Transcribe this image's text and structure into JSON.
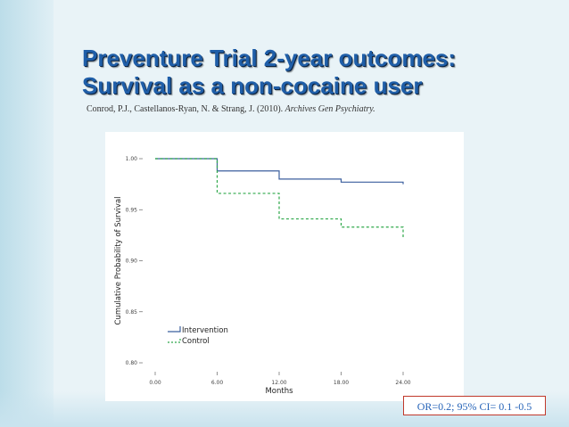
{
  "slide": {
    "title_line1": "Preventure Trial 2-year outcomes:",
    "title_line2": "Survival as a non-cocaine user",
    "citation_authors": "Conrod, P.J., Castellanos-Ryan, N. & Strang, J. (2010). ",
    "citation_journal": "Archives Gen Psychiatry.",
    "annotation": "OR=0.2; 95% CI= 0.1 -0.5"
  },
  "colors": {
    "intervention": "#3b5f9e",
    "control": "#2ea84a",
    "title": "#1f5ea8"
  },
  "chart_data": {
    "type": "line",
    "title": "",
    "xlabel": "Months",
    "ylabel": "Cumulative Probability of Survival",
    "xlim": [
      0,
      24
    ],
    "ylim": [
      0.8,
      1.0
    ],
    "xticks": [
      0,
      6,
      12,
      18,
      24
    ],
    "xtick_labels": [
      "0.00",
      "6.00",
      "12.00",
      "18.00",
      "24.00"
    ],
    "yticks": [
      0.8,
      0.85,
      0.9,
      0.95,
      1.0
    ],
    "ytick_labels": [
      "0.80",
      "0.85",
      "0.90",
      "0.95",
      "1.00"
    ],
    "legend": "bottom-left",
    "series": [
      {
        "name": "Intervention",
        "style": "solid",
        "x": [
          0,
          6,
          12,
          18,
          24
        ],
        "y": [
          1.0,
          0.988,
          0.98,
          0.977,
          0.975
        ]
      },
      {
        "name": "Control",
        "style": "dashed",
        "x": [
          0,
          6,
          12,
          18,
          24
        ],
        "y": [
          1.0,
          0.966,
          0.941,
          0.933,
          0.922
        ]
      }
    ]
  }
}
